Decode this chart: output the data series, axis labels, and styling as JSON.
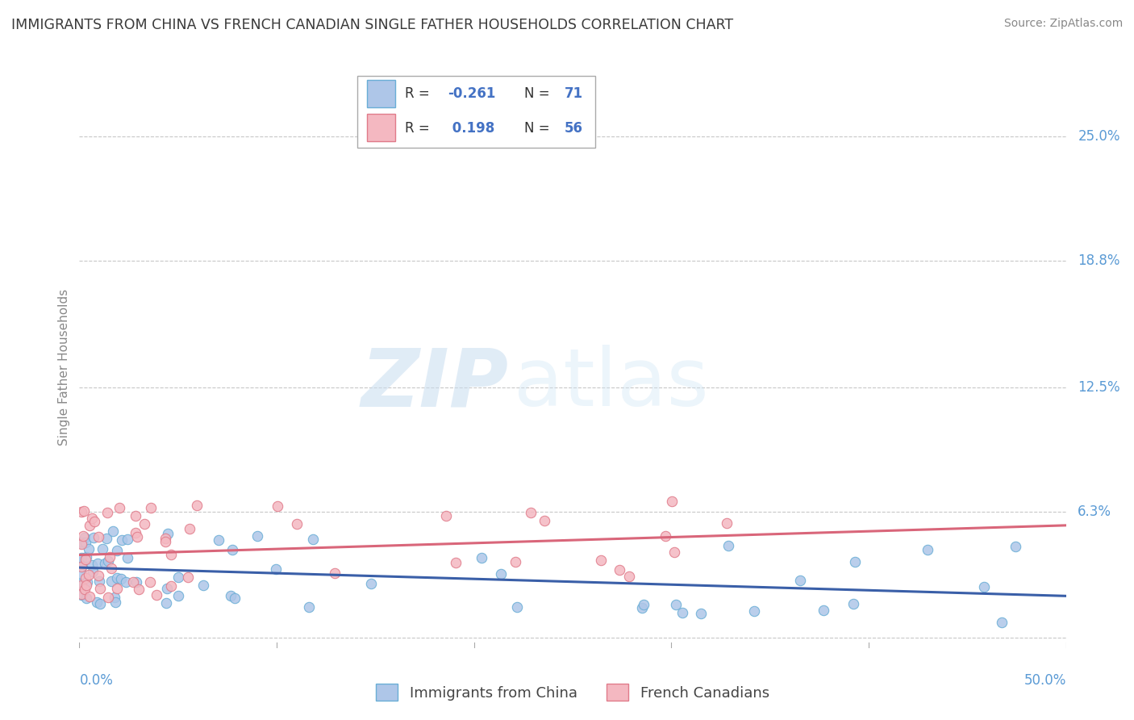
{
  "title": "IMMIGRANTS FROM CHINA VS FRENCH CANADIAN SINGLE FATHER HOUSEHOLDS CORRELATION CHART",
  "source": "Source: ZipAtlas.com",
  "ylabel": "Single Father Households",
  "series1_label": "Immigrants from China",
  "series2_label": "French Canadians",
  "series1_color": "#aec6e8",
  "series1_edge": "#6aaed6",
  "series1_line": "#3a5fa8",
  "series2_color": "#f4b8c1",
  "series2_edge": "#e07b8a",
  "series2_line": "#d9667a",
  "background_color": "#ffffff",
  "grid_color": "#c8c8c8",
  "title_color": "#3a3a3a",
  "axis_label_color": "#5b9bd5",
  "ytick_values": [
    0.0,
    0.063,
    0.125,
    0.188,
    0.25
  ],
  "ytick_labels": [
    "",
    "6.3%",
    "12.5%",
    "18.8%",
    "25.0%"
  ],
  "x_range": [
    0.0,
    0.5
  ],
  "y_range": [
    -0.005,
    0.275
  ],
  "legend_r1_val": "-0.261",
  "legend_n1_val": "71",
  "legend_r2_val": "0.198",
  "legend_n2_val": "56"
}
